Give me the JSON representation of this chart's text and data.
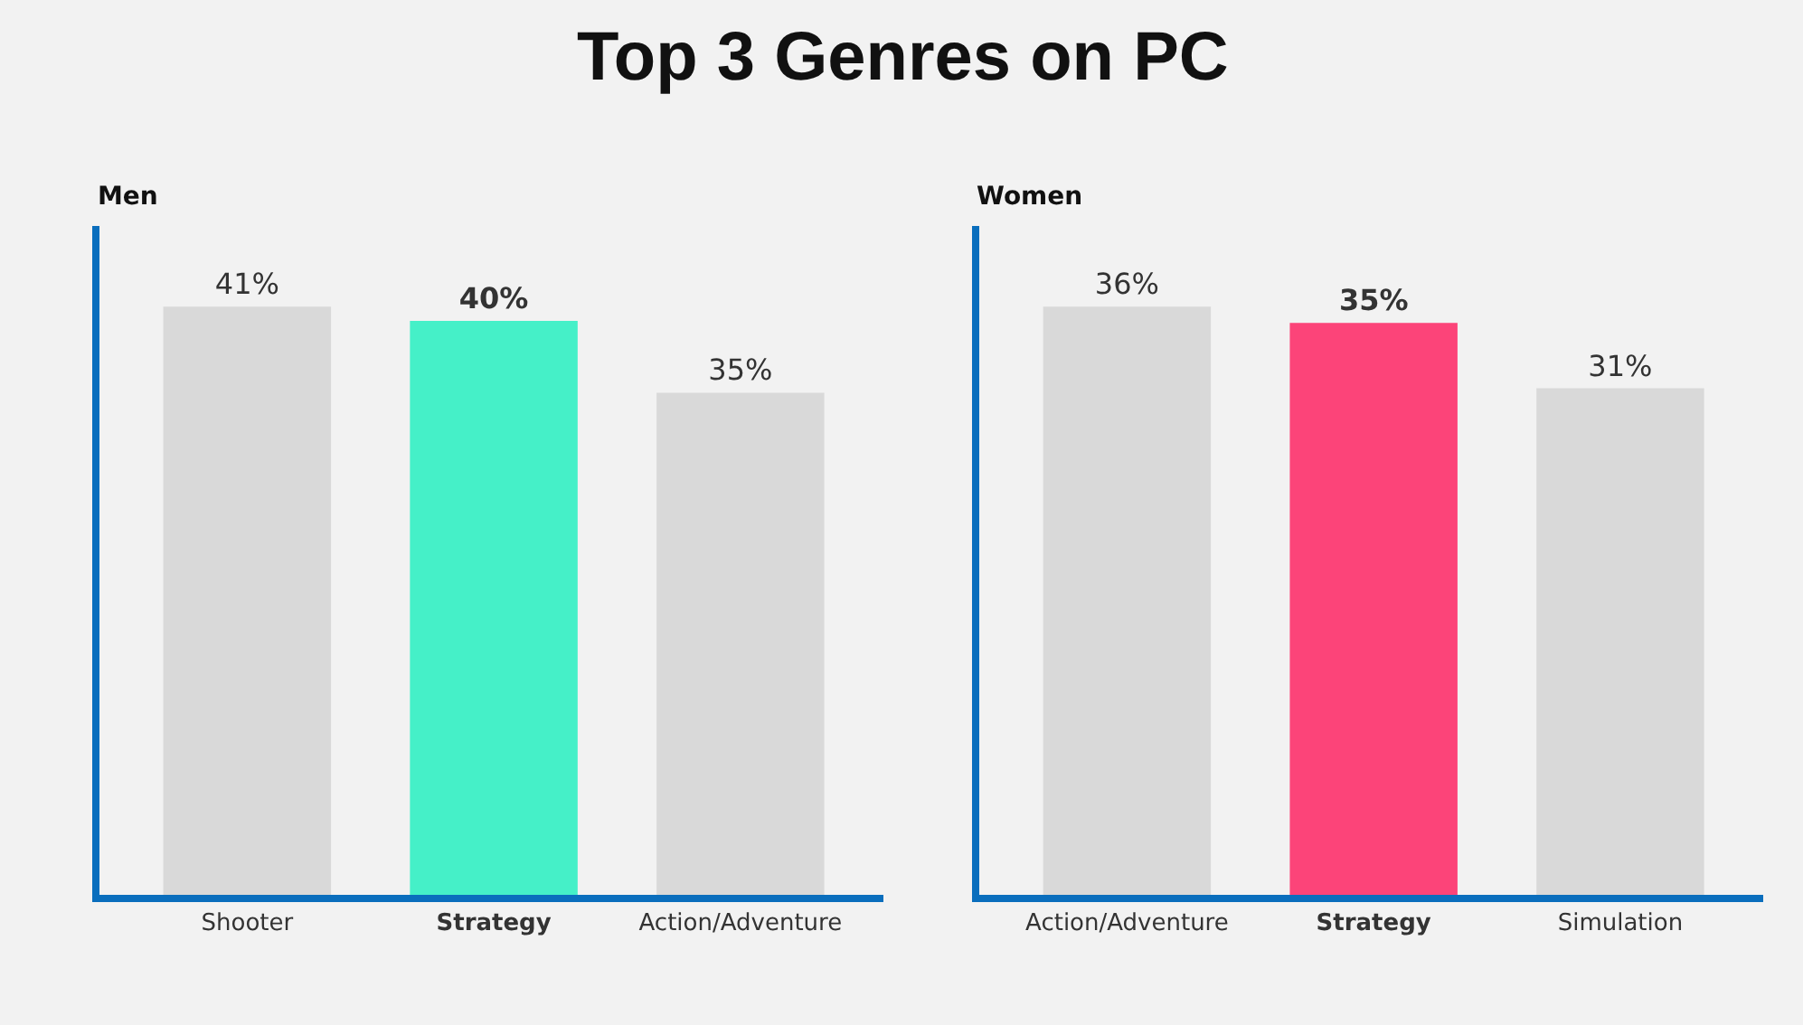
{
  "chart_data": [
    {
      "type": "bar",
      "title": "Top 3 Genres on PC",
      "ylabel": "Men",
      "categories": [
        "Shooter",
        "Strategy",
        "Action/Adventure"
      ],
      "values": [
        41,
        40,
        35
      ],
      "value_labels": [
        "41%",
        "40%",
        "35%"
      ],
      "colors": [
        "#d9d9d9",
        "#45f0c8",
        "#d9d9d9"
      ],
      "tick_labels": "x"
    },
    {
      "type": "bar",
      "ylabel": "Women",
      "categories": [
        "Action/Adventure",
        "Strategy",
        "Simulation"
      ],
      "values": [
        36,
        35,
        31
      ],
      "value_labels": [
        "36%",
        "35%",
        "31%"
      ],
      "colors": [
        "#d9d9d9",
        "#fc4479",
        "#d9d9d9"
      ],
      "tick_labels": "x"
    }
  ]
}
